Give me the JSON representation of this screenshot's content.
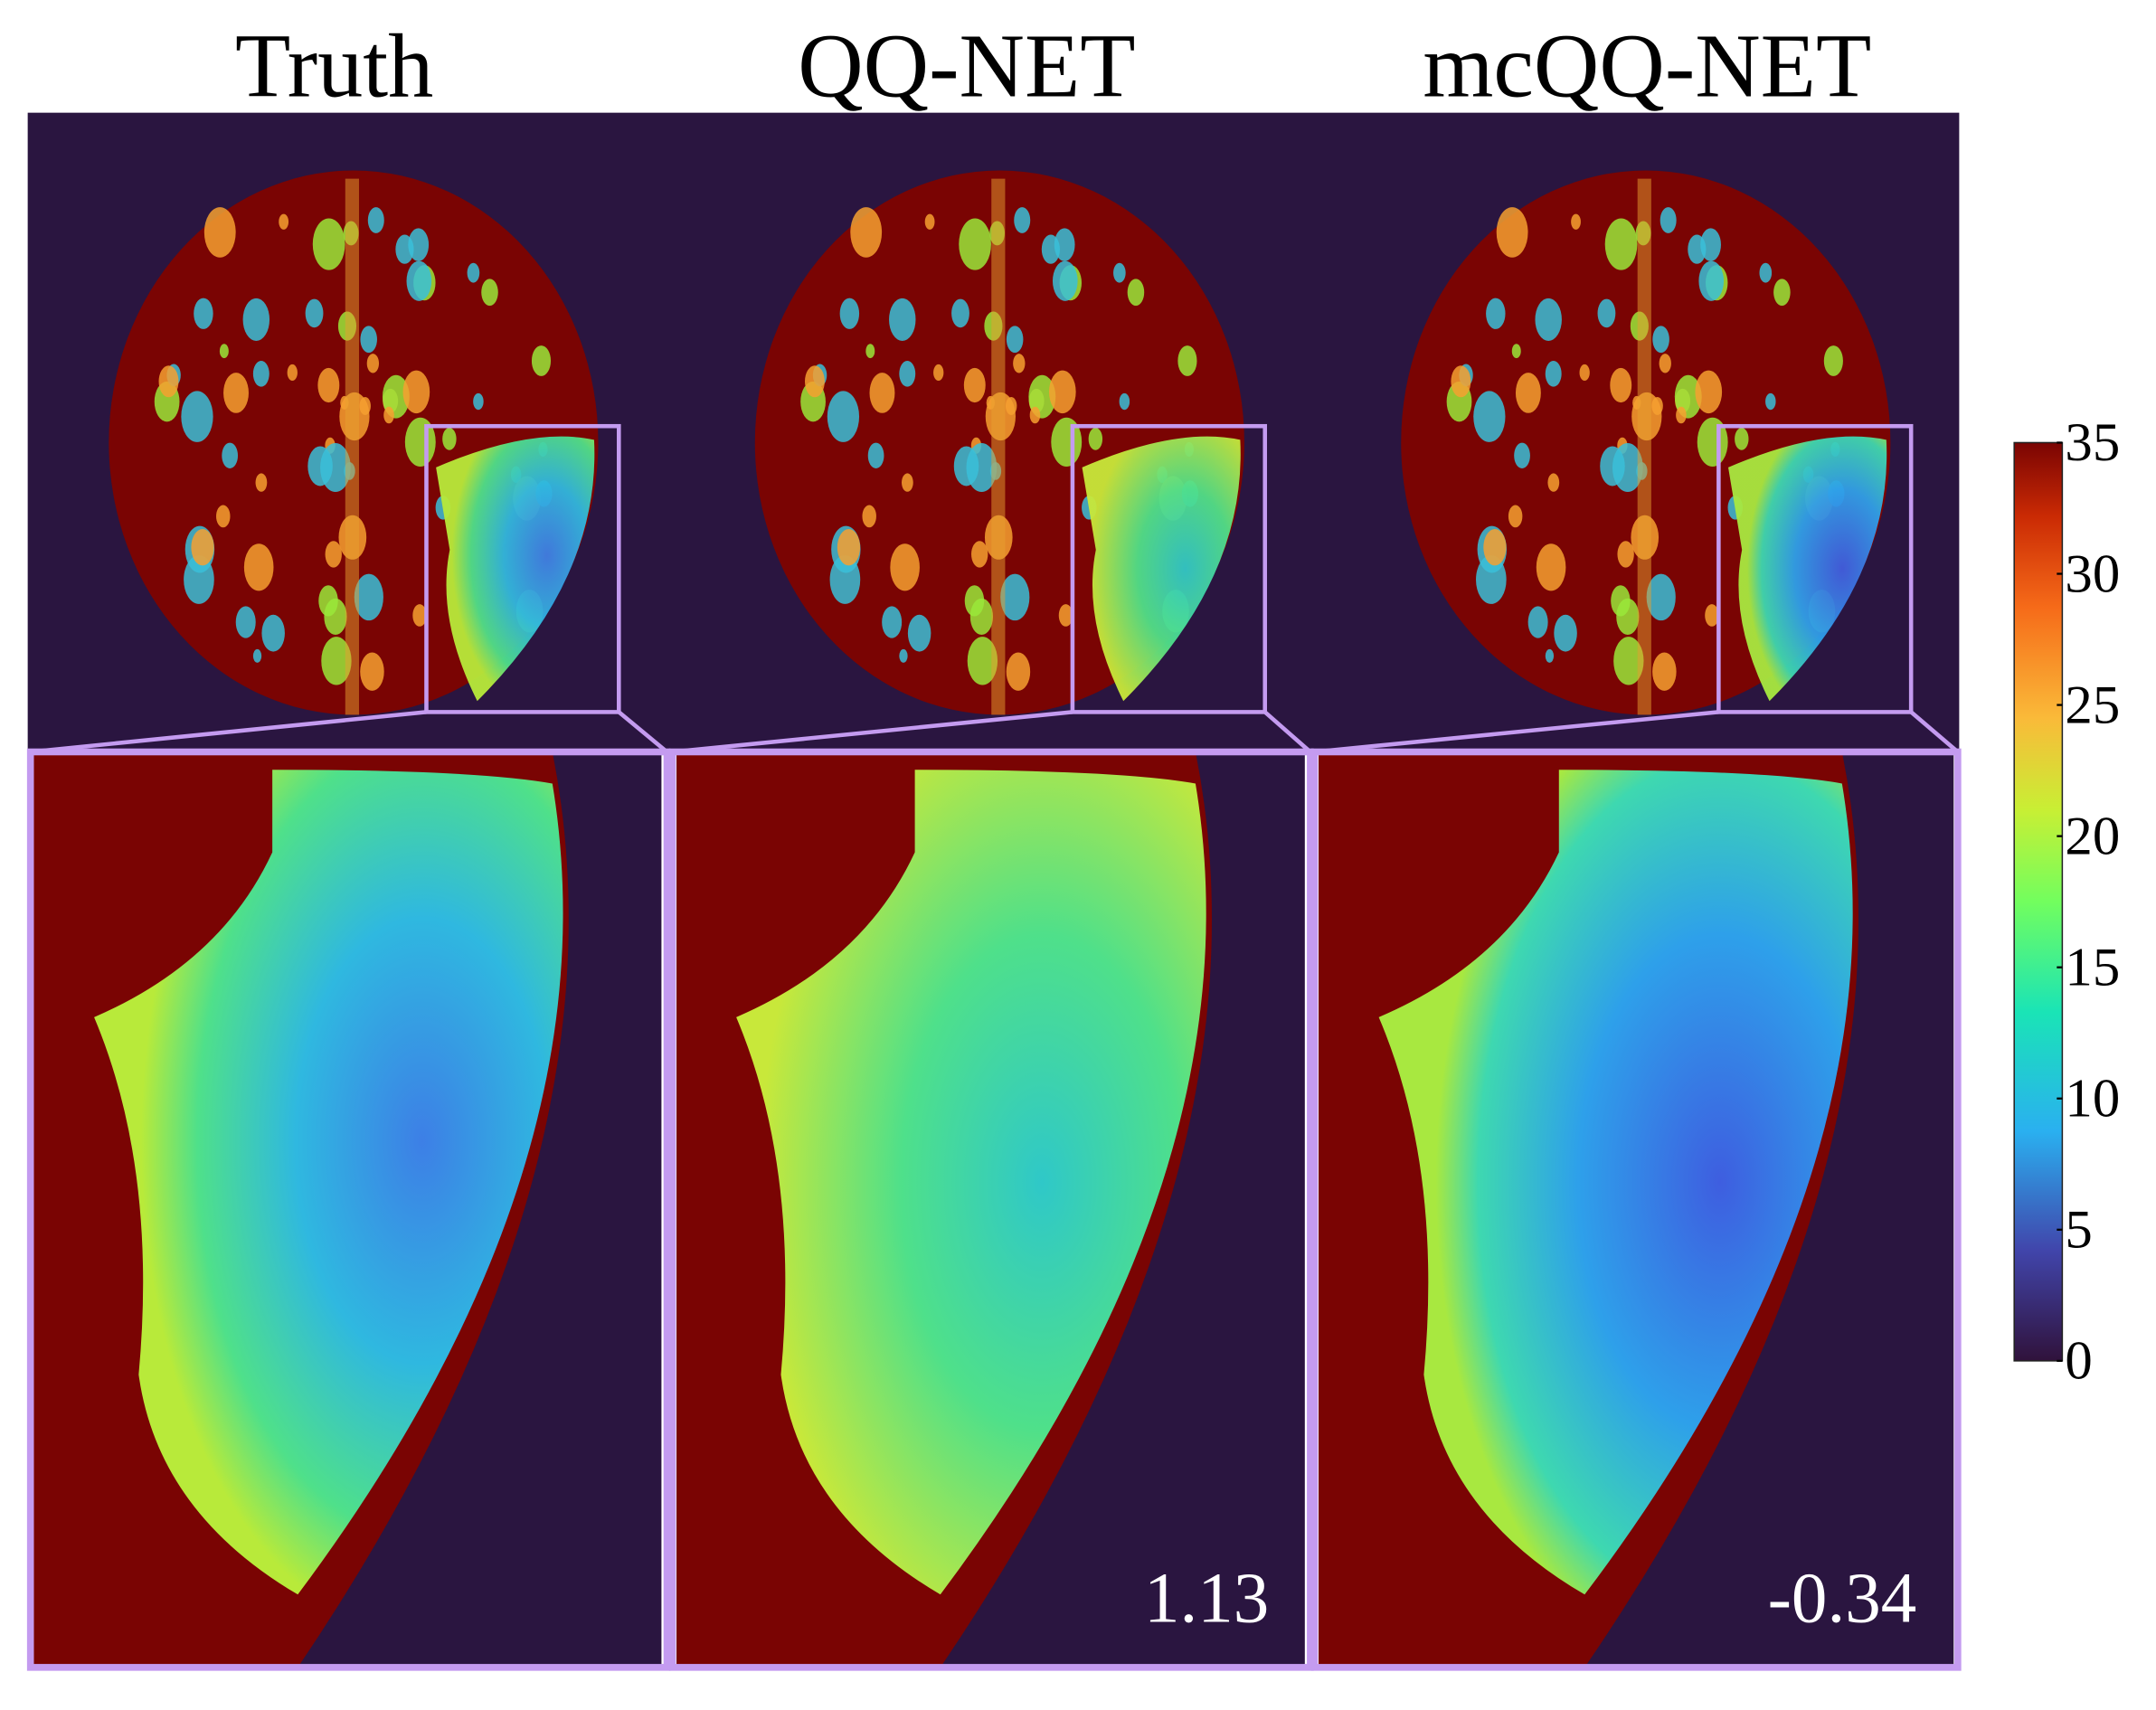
{
  "figure": {
    "columns": [
      {
        "title": "Truth",
        "score": ""
      },
      {
        "title": "QQ-NET",
        "score": "1.13"
      },
      {
        "title": "mcQQ-NET",
        "score": "-0.34"
      }
    ],
    "colorbar": {
      "min": 0,
      "max": 35,
      "ticks": [
        "35",
        "30",
        "25",
        "20",
        "15",
        "10",
        "5",
        "0"
      ],
      "colormap": "turbo"
    },
    "colors": {
      "background": "#2a1540",
      "tissue_high": "#7a0403",
      "inset_border": "#c49bf0"
    }
  }
}
